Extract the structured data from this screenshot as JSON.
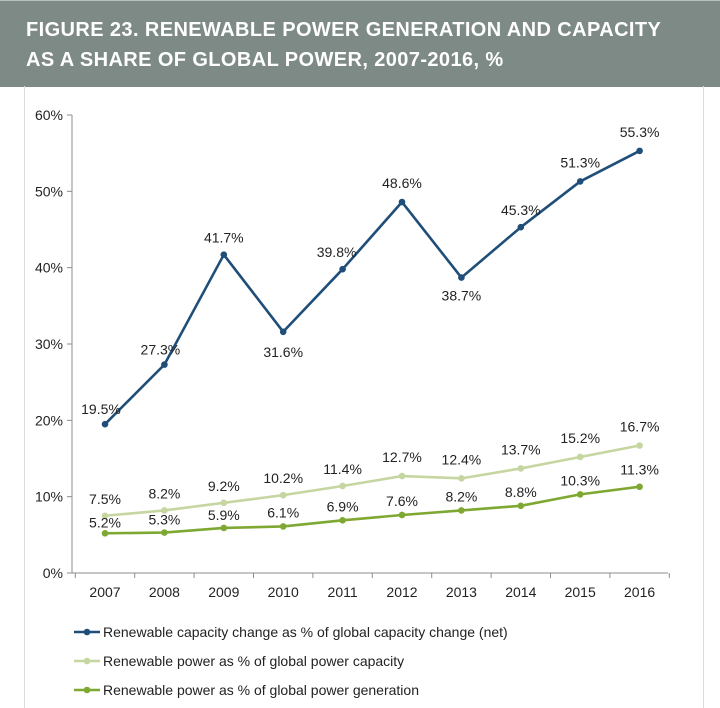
{
  "figure": {
    "title_line1": "FIGURE 23. RENEWABLE POWER GENERATION AND CAPACITY",
    "title_line2": "AS A SHARE OF GLOBAL POWER, 2007-2016, %"
  },
  "chart_data": {
    "type": "line",
    "x": [
      "2007",
      "2008",
      "2009",
      "2010",
      "2011",
      "2012",
      "2013",
      "2014",
      "2015",
      "2016"
    ],
    "ylim": [
      0,
      60
    ],
    "yticks": [
      "0%",
      "10%",
      "20%",
      "30%",
      "40%",
      "50%",
      "60%"
    ],
    "grid": false,
    "legend_position": "bottom",
    "series": [
      {
        "name": "Renewable capacity change as % of global capacity change (net)",
        "color": "#1f4e79",
        "values": [
          19.5,
          27.3,
          41.7,
          31.6,
          39.8,
          48.6,
          38.7,
          45.3,
          51.3,
          55.3
        ],
        "labels": [
          "19.5%",
          "27.3%",
          "41.7%",
          "31.6%",
          "39.8%",
          "48.6%",
          "38.7%",
          "45.3%",
          "51.3%",
          "55.3%"
        ]
      },
      {
        "name": "Renewable power as % of global power capacity",
        "color": "#c5d6a1",
        "values": [
          7.5,
          8.2,
          9.2,
          10.2,
          11.4,
          12.7,
          12.4,
          13.7,
          15.2,
          16.7
        ],
        "labels": [
          "7.5%",
          "8.2%",
          "9.2%",
          "10.2%",
          "11.4%",
          "12.7%",
          "12.4%",
          "13.7%",
          "15.2%",
          "16.7%"
        ]
      },
      {
        "name": "Renewable power as % of global power generation",
        "color": "#7fa832",
        "values": [
          5.2,
          5.3,
          5.9,
          6.1,
          6.9,
          7.6,
          8.2,
          8.8,
          10.3,
          11.3
        ],
        "labels": [
          "5.2%",
          "5.3%",
          "5.9%",
          "6.1%",
          "6.9%",
          "7.6%",
          "8.2%",
          "8.8%",
          "10.3%",
          "11.3%"
        ]
      }
    ]
  }
}
